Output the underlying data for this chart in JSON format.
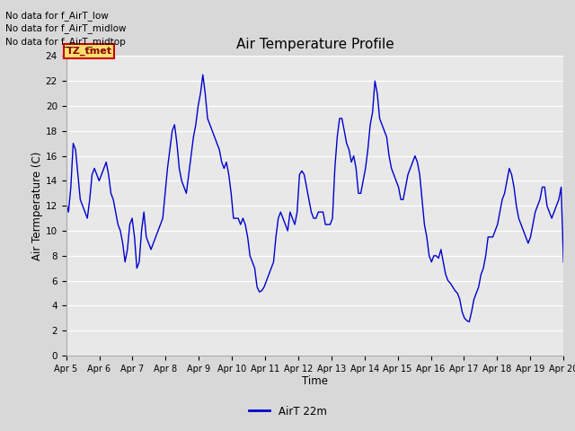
{
  "title": "Air Temperature Profile",
  "xlabel": "Time",
  "ylabel": "Air Termperature (C)",
  "legend_label": "AirT 22m",
  "text_lines": [
    "No data for f_AirT_low",
    "No data for f_AirT_midlow",
    "No data for f_AirT_midtop"
  ],
  "annotation_text": "TZ_tmet",
  "ylim": [
    0,
    24
  ],
  "yticks": [
    0,
    2,
    4,
    6,
    8,
    10,
    12,
    14,
    16,
    18,
    20,
    22,
    24
  ],
  "line_color": "#0000cc",
  "fig_bg_color": "#d8d8d8",
  "plot_bg_color": "#e8e8e8",
  "x_labels": [
    "Apr 5",
    "Apr 6",
    "Apr 7",
    "Apr 8",
    "Apr 9",
    "Apr 10",
    "Apr 11",
    "Apr 12",
    "Apr 13",
    "Apr 14",
    "Apr 15",
    "Apr 16",
    "Apr 17",
    "Apr 18",
    "Apr 19",
    "Apr 20"
  ],
  "y_values": [
    12.3,
    11.5,
    13.5,
    17.0,
    16.5,
    14.5,
    12.5,
    12.0,
    11.5,
    11.0,
    12.5,
    14.5,
    15.0,
    14.5,
    14.0,
    14.5,
    15.0,
    15.5,
    14.5,
    13.0,
    12.5,
    11.5,
    10.5,
    10.0,
    9.0,
    7.5,
    8.5,
    10.5,
    11.0,
    9.5,
    7.0,
    7.5,
    10.0,
    11.5,
    9.5,
    9.0,
    8.5,
    9.0,
    9.5,
    10.0,
    10.5,
    11.0,
    13.0,
    15.0,
    16.5,
    18.0,
    18.5,
    17.0,
    15.0,
    14.0,
    13.5,
    13.0,
    14.5,
    16.0,
    17.5,
    18.5,
    20.0,
    21.0,
    22.5,
    21.0,
    19.0,
    18.5,
    18.0,
    17.5,
    17.0,
    16.5,
    15.5,
    15.0,
    15.5,
    14.5,
    13.0,
    11.0,
    11.0,
    11.0,
    10.5,
    11.0,
    10.5,
    9.5,
    8.0,
    7.5,
    7.0,
    5.5,
    5.1,
    5.2,
    5.5,
    6.0,
    6.5,
    7.0,
    7.5,
    9.5,
    11.0,
    11.5,
    11.0,
    10.5,
    10.0,
    11.5,
    11.0,
    10.5,
    11.5,
    14.5,
    14.8,
    14.5,
    13.5,
    12.5,
    11.5,
    11.0,
    11.0,
    11.5,
    11.5,
    11.5,
    10.5,
    10.5,
    10.5,
    11.0,
    15.0,
    17.5,
    19.0,
    19.0,
    18.0,
    17.0,
    16.5,
    15.5,
    16.0,
    15.0,
    13.0,
    13.0,
    14.0,
    15.0,
    16.5,
    18.5,
    19.5,
    22.0,
    21.0,
    19.0,
    18.5,
    18.0,
    17.5,
    16.0,
    15.0,
    14.5,
    14.0,
    13.5,
    12.5,
    12.5,
    13.5,
    14.5,
    15.0,
    15.5,
    16.0,
    15.5,
    14.5,
    12.5,
    10.5,
    9.5,
    8.0,
    7.5,
    8.0,
    8.0,
    7.8,
    8.5,
    7.5,
    6.5,
    6.0,
    5.8,
    5.5,
    5.2,
    5.0,
    4.5,
    3.5,
    3.0,
    2.8,
    2.7,
    3.5,
    4.5,
    5.0,
    5.5,
    6.5,
    7.0,
    8.0,
    9.5,
    9.5,
    9.5,
    10.0,
    10.5,
    11.5,
    12.5,
    13.0,
    14.0,
    15.0,
    14.5,
    13.5,
    12.0,
    11.0,
    10.5,
    10.0,
    9.5,
    9.0,
    9.5,
    10.5,
    11.5,
    12.0,
    12.5,
    13.5,
    13.5,
    12.0,
    11.5,
    11.0,
    11.5,
    12.0,
    12.5,
    13.5,
    7.5
  ]
}
